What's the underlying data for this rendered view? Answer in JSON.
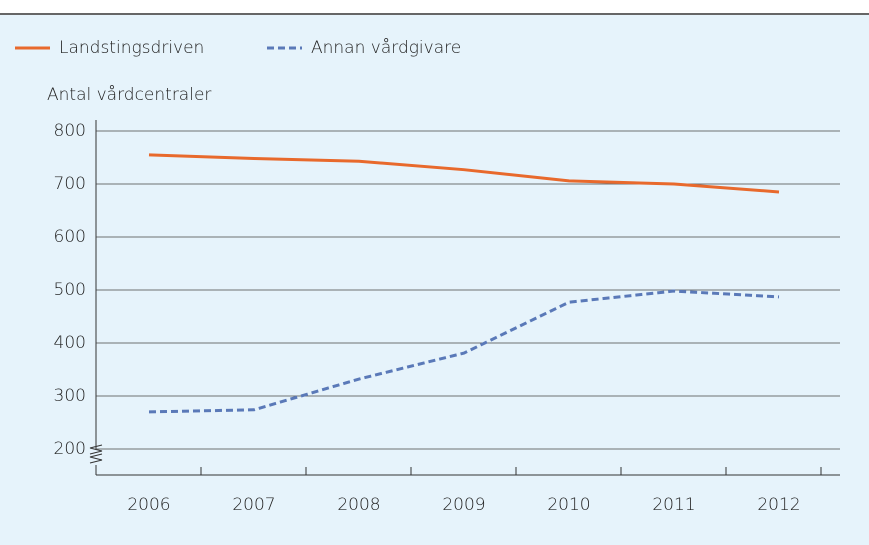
{
  "chart_data": {
    "type": "line",
    "y_label": "Antal vårdcentraler",
    "categories": [
      "2006",
      "2007",
      "2008",
      "2009",
      "2010",
      "2011",
      "2012"
    ],
    "series": [
      {
        "name": "Landstingsdriven",
        "color": "#e8692c",
        "dash": false,
        "values": [
          755,
          748,
          743,
          727,
          706,
          700,
          685
        ]
      },
      {
        "name": "Annan vårdgivare",
        "color": "#5a79b8",
        "dash": true,
        "values": [
          270,
          274,
          332,
          381,
          477,
          498,
          487
        ]
      }
    ],
    "ylim": [
      200,
      800
    ],
    "yticks": [
      200,
      300,
      400,
      500,
      600,
      700,
      800
    ],
    "grid": true
  }
}
